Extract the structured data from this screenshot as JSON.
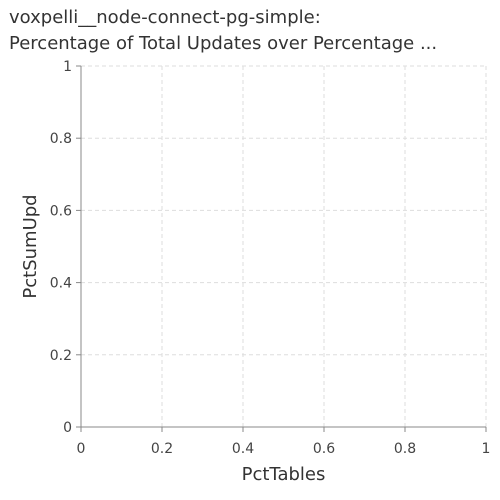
{
  "chart_data": {
    "type": "line",
    "title_line1": "voxpelli__node-connect-pg-simple:",
    "title_line2": "Percentage of Total Updates over Percentage ...",
    "xlabel": "PctTables",
    "ylabel": "PctSumUpd",
    "xlim": [
      0,
      1
    ],
    "ylim": [
      0,
      1
    ],
    "x_ticks": [
      "0",
      "0.2",
      "0.4",
      "0.6",
      "0.8",
      "1"
    ],
    "y_ticks": [
      "0",
      "0.2",
      "0.4",
      "0.6",
      "0.8",
      "1"
    ],
    "grid": true,
    "series": []
  }
}
